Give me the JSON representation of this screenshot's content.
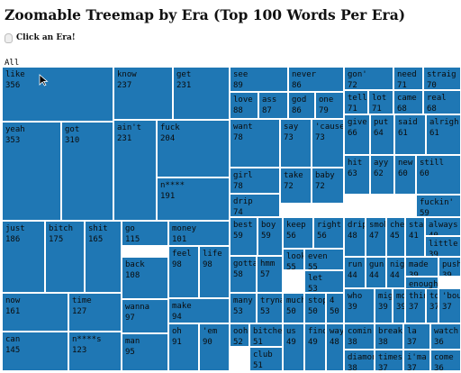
{
  "title": "Zoomable Treemap by Era (Top 100 Words Per Era)",
  "click_hint": "Click an Era!",
  "breadcrumb": "All",
  "colors": {
    "cell_fill": "#1f77b4",
    "cell_border": "#ffffff",
    "text": "#0b0b0b"
  },
  "cells": [
    {
      "word": "like",
      "count": "356"
    },
    {
      "word": "know",
      "count": "237"
    },
    {
      "word": "get",
      "count": "231"
    },
    {
      "word": "see",
      "count": "89"
    },
    {
      "word": "never",
      "count": "86"
    },
    {
      "word": "gon'",
      "count": "72"
    },
    {
      "word": "need",
      "count": "71"
    },
    {
      "word": "straig",
      "count": "70"
    },
    {
      "word": "love",
      "count": "88"
    },
    {
      "word": "ass",
      "count": "87"
    },
    {
      "word": "god",
      "count": "86"
    },
    {
      "word": "one",
      "count": "79"
    },
    {
      "word": "tell",
      "count": "71"
    },
    {
      "word": "lot",
      "count": "71"
    },
    {
      "word": "came",
      "count": "68"
    },
    {
      "word": "real",
      "count": "68"
    },
    {
      "word": "yeah",
      "count": "353"
    },
    {
      "word": "got",
      "count": "310"
    },
    {
      "word": "ain't",
      "count": "231"
    },
    {
      "word": "fuck",
      "count": "204"
    },
    {
      "word": "want",
      "count": "78"
    },
    {
      "word": "say",
      "count": "73"
    },
    {
      "word": "'cause",
      "count": "73"
    },
    {
      "word": "give",
      "count": "66"
    },
    {
      "word": "put",
      "count": "64"
    },
    {
      "word": "said",
      "count": "61"
    },
    {
      "word": "alrigh",
      "count": "61"
    },
    {
      "word": "girl",
      "count": "78"
    },
    {
      "word": "n****",
      "count": "191"
    },
    {
      "word": "take",
      "count": "72"
    },
    {
      "word": "baby",
      "count": "72"
    },
    {
      "word": "hit",
      "count": "63"
    },
    {
      "word": "ayy",
      "count": "62"
    },
    {
      "word": "new",
      "count": "60"
    },
    {
      "word": "still",
      "count": "60"
    },
    {
      "word": "drip",
      "count": "74"
    },
    {
      "word": "fuckin'",
      "count": "59"
    },
    {
      "word": "just",
      "count": "186"
    },
    {
      "word": "bitch",
      "count": "175"
    },
    {
      "word": "shit",
      "count": "165"
    },
    {
      "word": "go",
      "count": "115"
    },
    {
      "word": "money",
      "count": "101"
    },
    {
      "word": "best",
      "count": "59"
    },
    {
      "word": "boy",
      "count": "59"
    },
    {
      "word": "keep",
      "count": "56"
    },
    {
      "word": "right",
      "count": "56"
    },
    {
      "word": "drip",
      "count": "48"
    },
    {
      "word": "smoke",
      "count": "47"
    },
    {
      "word": "check",
      "count": "45"
    },
    {
      "word": "stay",
      "count": "41"
    },
    {
      "word": "always",
      "count": "40"
    },
    {
      "word": "little",
      "count": "39"
    },
    {
      "word": "feel",
      "count": "98"
    },
    {
      "word": "life",
      "count": "98"
    },
    {
      "word": "look",
      "count": "55"
    },
    {
      "word": "even",
      "count": "55"
    },
    {
      "word": "back",
      "count": "108"
    },
    {
      "word": "gotta",
      "count": "58"
    },
    {
      "word": "hmm",
      "count": "57"
    },
    {
      "word": "run",
      "count": "44"
    },
    {
      "word": "gun",
      "count": "44"
    },
    {
      "word": "night",
      "count": "44"
    },
    {
      "word": "made",
      "count": "39"
    },
    {
      "word": "push",
      "count": "39"
    },
    {
      "word": "let",
      "count": "53"
    },
    {
      "word": "enough",
      "count": "39"
    },
    {
      "word": "now",
      "count": "161"
    },
    {
      "word": "time",
      "count": "127"
    },
    {
      "word": "wanna",
      "count": "97"
    },
    {
      "word": "make",
      "count": "94"
    },
    {
      "word": "many",
      "count": "53"
    },
    {
      "word": "tryna",
      "count": "53"
    },
    {
      "word": "much",
      "count": "50"
    },
    {
      "word": "stop",
      "count": "50"
    },
    {
      "word": "4",
      "count": "50"
    },
    {
      "word": "who",
      "count": "39"
    },
    {
      "word": "might",
      "count": "39"
    },
    {
      "word": "more",
      "count": "39"
    },
    {
      "word": "think",
      "count": "37"
    },
    {
      "word": "told",
      "count": "37"
    },
    {
      "word": "'bout",
      "count": "37"
    },
    {
      "word": "can",
      "count": "145"
    },
    {
      "word": "n****s",
      "count": "123"
    },
    {
      "word": "man",
      "count": "95"
    },
    {
      "word": "oh",
      "count": "91"
    },
    {
      "word": "'em",
      "count": "90"
    },
    {
      "word": "ooh",
      "count": "52"
    },
    {
      "word": "bitches",
      "count": "51"
    },
    {
      "word": "us",
      "count": "49"
    },
    {
      "word": "find",
      "count": "49"
    },
    {
      "word": "way",
      "count": "48"
    },
    {
      "word": "comin",
      "count": "38"
    },
    {
      "word": "break",
      "count": "38"
    },
    {
      "word": "la",
      "count": "37"
    },
    {
      "word": "watch",
      "count": "36"
    },
    {
      "word": "club",
      "count": "51"
    },
    {
      "word": "diamond",
      "count": "38"
    },
    {
      "word": "times",
      "count": "37"
    },
    {
      "word": "i'ma",
      "count": "37"
    },
    {
      "word": "come",
      "count": "36"
    }
  ]
}
